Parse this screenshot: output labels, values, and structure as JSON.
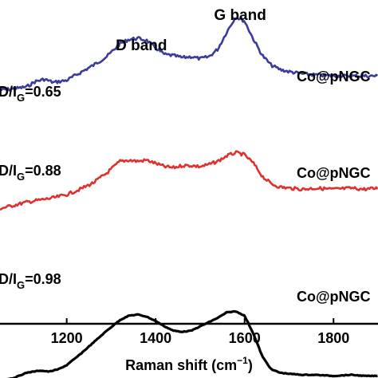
{
  "chart_data": {
    "type": "line",
    "xlabel": "Raman shift (cm",
    "xlabel_sup": "−1",
    "xlabel_tail": ")",
    "ylabel": "",
    "xlim": [
      1050,
      1900
    ],
    "xticks": [
      1200,
      1400,
      1600,
      1800
    ],
    "grid": false,
    "peak_labels": [
      {
        "text": "D band",
        "x": 1350
      },
      {
        "text": "G band",
        "x": 1590
      }
    ],
    "series": [
      {
        "name": "Co@pNGC",
        "ratio_label": {
          "pre": "D",
          "mid": "/I",
          "sub": "G",
          "value": "=0.65"
        },
        "color": "#3b3b9c",
        "x": [
          1050,
          1080,
          1110,
          1130,
          1150,
          1170,
          1200,
          1230,
          1260,
          1290,
          1320,
          1340,
          1360,
          1380,
          1400,
          1420,
          1440,
          1460,
          1480,
          1500,
          1520,
          1540,
          1560,
          1580,
          1600,
          1620,
          1640,
          1660,
          1680,
          1700,
          1730,
          1760,
          1800,
          1840,
          1870,
          1900
        ],
        "y": [
          9,
          10,
          12,
          17,
          19,
          16,
          18,
          25,
          32,
          40,
          52,
          56,
          57,
          55,
          48,
          42,
          41,
          39,
          40,
          38,
          40,
          47,
          63,
          77,
          73,
          56,
          41,
          32,
          28,
          26,
          24,
          23,
          22,
          22,
          22,
          22
        ]
      },
      {
        "name": "Co@pNGC",
        "ratio_label": {
          "pre": "D",
          "mid": "/I",
          "sub": "G",
          "value": "=0.88"
        },
        "color": "#e03030",
        "x": [
          1050,
          1080,
          1110,
          1140,
          1170,
          1200,
          1230,
          1260,
          1290,
          1320,
          1340,
          1360,
          1380,
          1400,
          1420,
          1440,
          1460,
          1480,
          1500,
          1520,
          1540,
          1560,
          1580,
          1600,
          1620,
          1640,
          1660,
          1680,
          1700,
          1730,
          1760,
          1800,
          1840,
          1870,
          1900
        ],
        "y": [
          -16,
          -13,
          -10,
          -8,
          -6,
          -3,
          2,
          8,
          17,
          28,
          29,
          28,
          29,
          26,
          23,
          22,
          24,
          24,
          23,
          25,
          28,
          33,
          36,
          34,
          26,
          14,
          7,
          4,
          3,
          2,
          3,
          2,
          3,
          2,
          3
        ]
      },
      {
        "name": "Co@pNGC",
        "ratio_label": {
          "pre": "D",
          "mid": "/I",
          "sub": "G",
          "value": "=0.98"
        },
        "color": "#000000",
        "x": [
          1050,
          1080,
          1110,
          1140,
          1160,
          1180,
          1200,
          1230,
          1260,
          1290,
          1320,
          1340,
          1360,
          1380,
          1400,
          1420,
          1440,
          1460,
          1480,
          1500,
          1520,
          1540,
          1560,
          1580,
          1600,
          1620,
          1640,
          1660,
          1680,
          1700,
          1730,
          1760,
          1800,
          1840,
          1870,
          1900
        ],
        "y": [
          -68,
          -66,
          -61,
          -59,
          -60,
          -58,
          -54,
          -44,
          -33,
          -22,
          -12,
          -8,
          -7,
          -9,
          -13,
          -18,
          -22,
          -23,
          -22,
          -18,
          -14,
          -10,
          -5,
          -4,
          -8,
          -25,
          -46,
          -58,
          -61,
          -62,
          -63,
          -63,
          -64,
          -63,
          -64,
          -64
        ]
      }
    ]
  }
}
